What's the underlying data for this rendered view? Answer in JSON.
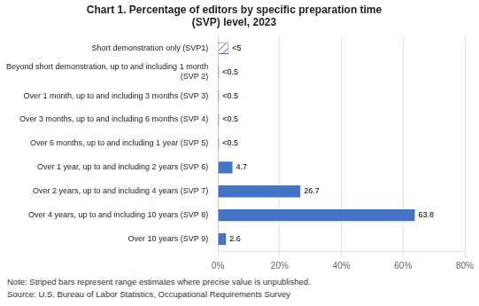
{
  "chart_data": {
    "type": "bar",
    "orientation": "horizontal",
    "title": "Chart 1. Percentage of editors by specific preparation time\n(SVP) level, 2023",
    "categories": [
      "Short demonstration only (SVP1)",
      "Beyond short demonstration, up to and including 1 month\n(SVP 2)",
      "Over 1 month, up to and including 3 months (SVP 3)",
      "Over 3 months, up to and including 6 months (SVP 4)",
      "Over 6 months, up to and including 1 year (SVP 5)",
      "Over 1 year, up to and including 2 years (SVP 6)",
      "Over 2 years, up to and including 4 years (SVP 7)",
      "Over 4 years, up to and including 10 years (SVP 8)",
      "Over 10 years (SVP 9)"
    ],
    "values": [
      3.5,
      0.3,
      0.3,
      0.3,
      0.3,
      4.7,
      26.7,
      63.8,
      2.6
    ],
    "value_labels": [
      "<5",
      "<0.5",
      "<0.5",
      "<0.5",
      "<0.5",
      "4.7",
      "26.7",
      "63.8",
      "2.6"
    ],
    "data_labels": true,
    "color": "#4472C4",
    "colors": [
      "#ffffff",
      "#4472C4",
      "#4472C4",
      "#4472C4",
      "#4472C4",
      "#4472C4",
      "#4472C4",
      "#4472C4",
      "#4472C4"
    ],
    "xlim": [
      0,
      80
    ],
    "xticks": [
      {
        "value": 0,
        "label": "0%"
      },
      {
        "value": 20,
        "label": "20%"
      },
      {
        "value": 40,
        "label": "40%"
      },
      {
        "value": 60,
        "label": "60%"
      },
      {
        "value": 80,
        "label": "80%"
      }
    ],
    "grid": true,
    "annotations": [
      "Note: Striped bars represent range estimates where precise value is unpublished.",
      "Source: U.S. Bureau of Labor Statistics, Occupational Requirements Survey"
    ]
  }
}
